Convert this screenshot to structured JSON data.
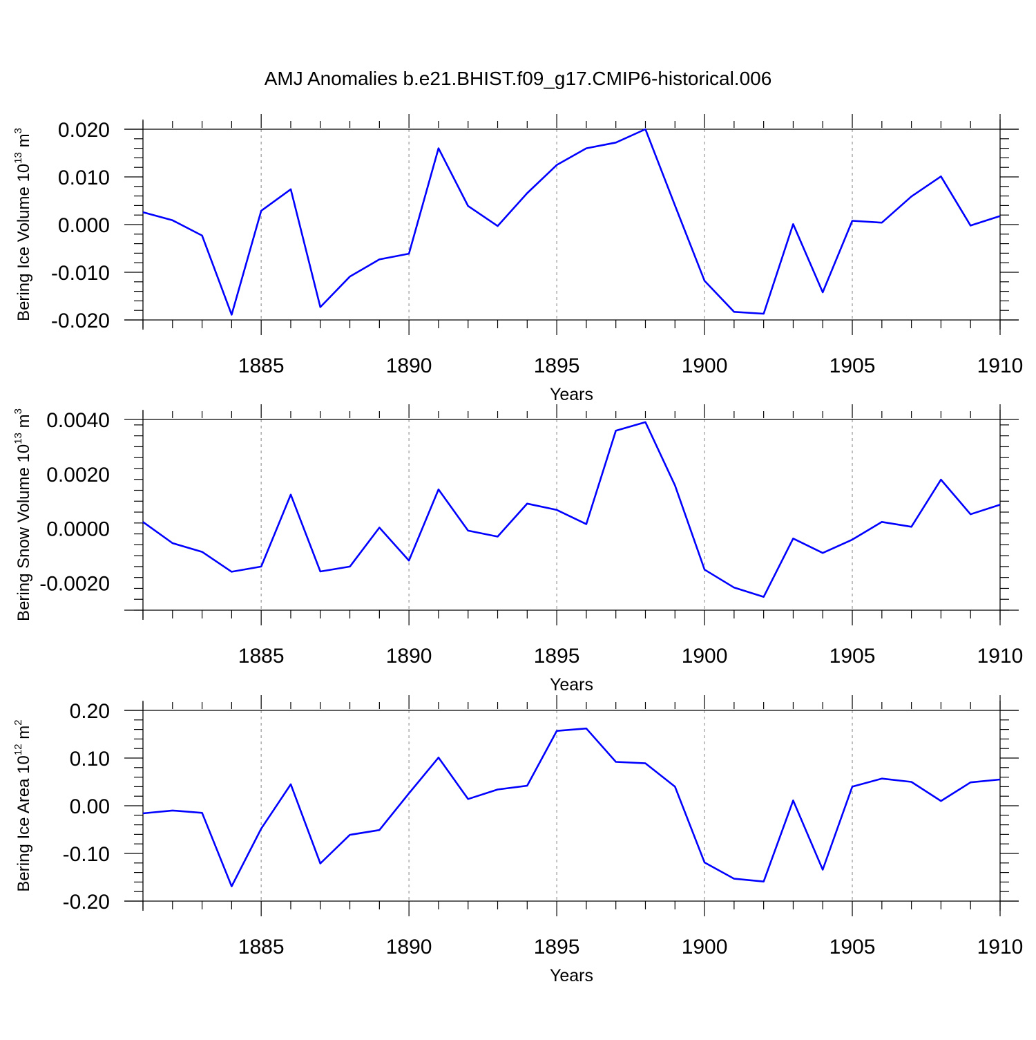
{
  "figure_title": "AMJ Anomalies b.e21.BHIST.f09_g17.CMIP6-historical.006",
  "colors": {
    "line": "#0000ff",
    "grid": "#a0a0a0",
    "axis": "#000000",
    "background": "#ffffff"
  },
  "chart_data": [
    {
      "type": "line",
      "ylabel": {
        "text": "Bering Ice Volume 10",
        "exp": "13",
        "unit": " m",
        "unit_exp": "3"
      },
      "xlabel": "Years",
      "xlim": [
        1881,
        1910
      ],
      "ylim": [
        -0.02,
        0.02
      ],
      "yticks": [
        -0.02,
        -0.01,
        0.0,
        0.01,
        0.02
      ],
      "ytick_labels": [
        "-0.020",
        "-0.010",
        "0.000",
        "0.010",
        "0.020"
      ],
      "xticks": [
        1885,
        1890,
        1895,
        1900,
        1905,
        1910
      ],
      "xtick_labels": [
        "1885",
        "1890",
        "1895",
        "1900",
        "1905",
        "1910"
      ],
      "grid": "vertical dashed at major x ticks",
      "x": [
        1881,
        1882,
        1883,
        1884,
        1885,
        1886,
        1887,
        1888,
        1889,
        1890,
        1891,
        1892,
        1893,
        1894,
        1895,
        1896,
        1897,
        1898,
        1899,
        1900,
        1901,
        1902,
        1903,
        1904,
        1905,
        1906,
        1907,
        1908,
        1909,
        1910
      ],
      "series": [
        {
          "values": [
            0.0026,
            0.0009,
            -0.0023,
            -0.0189,
            0.0029,
            0.0074,
            -0.0173,
            -0.0109,
            -0.0073,
            -0.0061,
            0.016,
            0.0039,
            -0.0003,
            0.0066,
            0.0125,
            0.016,
            0.0172,
            0.02,
            0.004,
            -0.0118,
            -0.0183,
            -0.0187,
            0.0001,
            -0.0142,
            0.0008,
            0.0004,
            0.0059,
            0.0101,
            -0.0002,
            0.0018
          ]
        }
      ]
    },
    {
      "type": "line",
      "ylabel": {
        "text": "Bering Snow Volume 10",
        "exp": "13",
        "unit": " m",
        "unit_exp": "3"
      },
      "xlabel": "Years",
      "xlim": [
        1881,
        1910
      ],
      "ylim": [
        -0.003,
        0.004
      ],
      "yticks": [
        -0.002,
        0.0,
        0.002,
        0.004
      ],
      "ytick_labels": [
        "-0.0020",
        "0.0000",
        "0.0020",
        "0.0040"
      ],
      "xticks": [
        1885,
        1890,
        1895,
        1900,
        1905,
        1910
      ],
      "xtick_labels": [
        "1885",
        "1890",
        "1895",
        "1900",
        "1905",
        "1910"
      ],
      "grid": "vertical dashed at major x ticks",
      "x": [
        1881,
        1882,
        1883,
        1884,
        1885,
        1886,
        1887,
        1888,
        1889,
        1890,
        1891,
        1892,
        1893,
        1894,
        1895,
        1896,
        1897,
        1898,
        1899,
        1900,
        1901,
        1902,
        1903,
        1904,
        1905,
        1906,
        1907,
        1908,
        1909,
        1910
      ],
      "series": [
        {
          "values": [
            0.00024,
            -0.00054,
            -0.00086,
            -0.00159,
            -0.0014,
            0.00124,
            -0.00158,
            -0.0014,
            3e-05,
            -0.00118,
            0.00143,
            -8e-05,
            -0.0003,
            0.00091,
            0.00068,
            0.00016,
            0.00359,
            0.0039,
            0.00158,
            -0.00151,
            -0.00217,
            -0.00251,
            -0.00037,
            -0.0009,
            -0.00041,
            0.00024,
            6e-05,
            0.00179,
            0.00052,
            0.00087
          ]
        }
      ]
    },
    {
      "type": "line",
      "ylabel": {
        "text": "Bering Ice Area 10",
        "exp": "12",
        "unit": " m",
        "unit_exp": "2"
      },
      "xlabel": "Years",
      "xlim": [
        1881,
        1910
      ],
      "ylim": [
        -0.2,
        0.2
      ],
      "yticks": [
        -0.2,
        -0.1,
        0.0,
        0.1,
        0.2
      ],
      "ytick_labels": [
        "-0.20",
        "-0.10",
        "0.00",
        "0.10",
        "0.20"
      ],
      "xticks": [
        1885,
        1890,
        1895,
        1900,
        1905,
        1910
      ],
      "xtick_labels": [
        "1885",
        "1890",
        "1895",
        "1900",
        "1905",
        "1910"
      ],
      "grid": "vertical dashed at major x ticks",
      "x": [
        1881,
        1882,
        1883,
        1884,
        1885,
        1886,
        1887,
        1888,
        1889,
        1890,
        1891,
        1892,
        1893,
        1894,
        1895,
        1896,
        1897,
        1898,
        1899,
        1900,
        1901,
        1902,
        1903,
        1904,
        1905,
        1906,
        1907,
        1908,
        1909,
        1910
      ],
      "series": [
        {
          "values": [
            -0.016,
            -0.01,
            -0.015,
            -0.169,
            -0.048,
            0.045,
            -0.121,
            -0.061,
            -0.051,
            0.026,
            0.101,
            0.014,
            0.034,
            0.042,
            0.157,
            0.162,
            0.092,
            0.089,
            0.04,
            -0.119,
            -0.153,
            -0.159,
            0.011,
            -0.134,
            0.04,
            0.057,
            0.05,
            0.01,
            0.049,
            0.055
          ]
        }
      ]
    }
  ]
}
